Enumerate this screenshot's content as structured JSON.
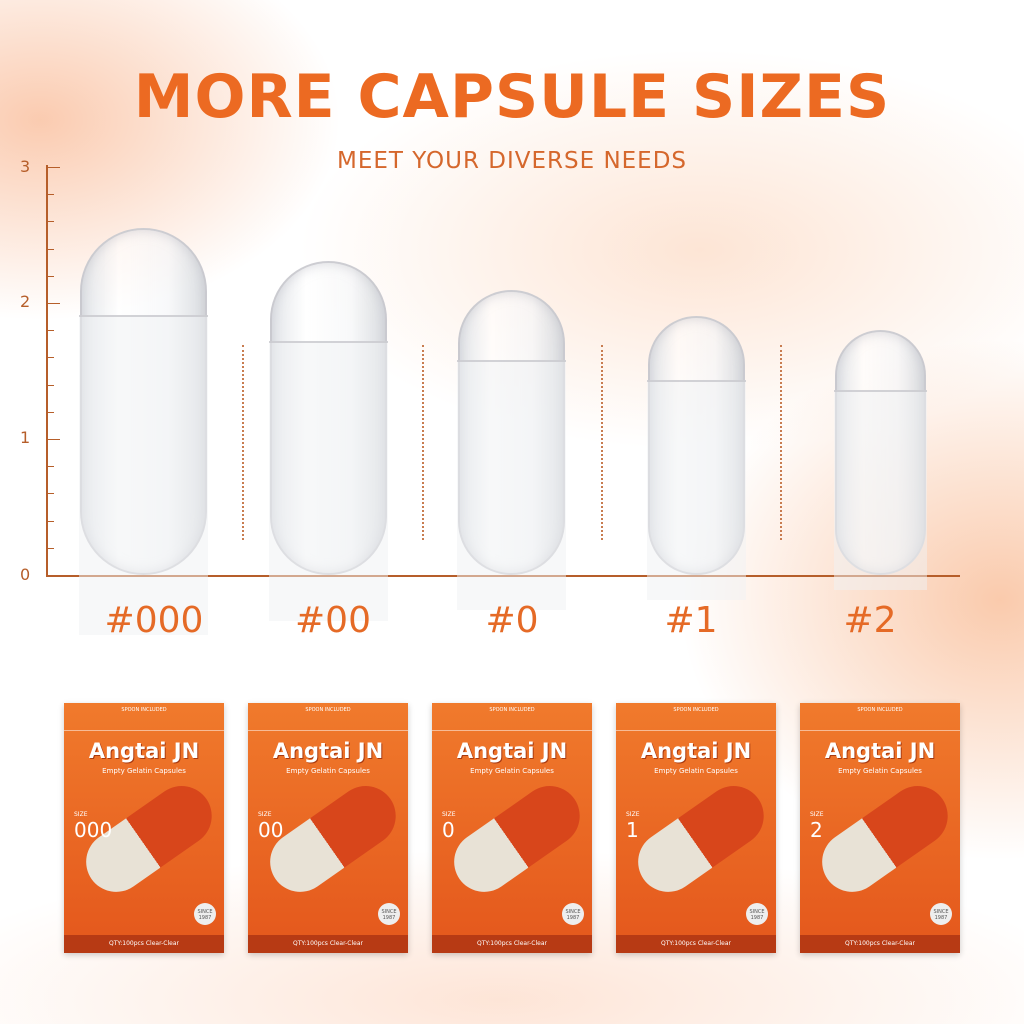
{
  "heading": {
    "title": "MORE CAPSULE SIZES",
    "subtitle": "MEET YOUR DIVERSE NEEDS"
  },
  "scale": {
    "ticks": [
      "0",
      "1",
      "2",
      "3"
    ]
  },
  "capsules": [
    {
      "label": "#000",
      "size": "000"
    },
    {
      "label": "#00",
      "size": "00"
    },
    {
      "label": "#0",
      "size": "0"
    },
    {
      "label": "#1",
      "size": "1"
    },
    {
      "label": "#2",
      "size": "2"
    }
  ],
  "package": {
    "spoon": "SPOON INCLUDED",
    "brand": "Angtai JN",
    "description": "Empty Gelatin Capsules",
    "size_label": "SIZE",
    "since": "SINCE 1987",
    "qty": "QTY:100pcs Clear-Clear"
  },
  "colors": {
    "accent": "#ec6a22"
  }
}
